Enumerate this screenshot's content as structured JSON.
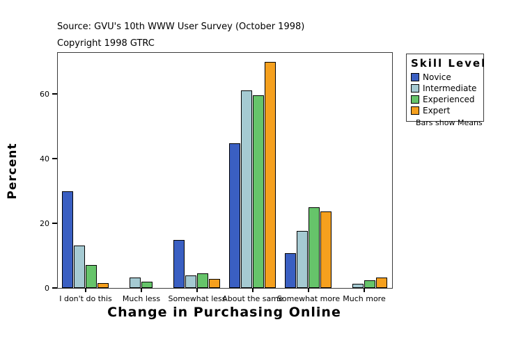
{
  "header": {
    "source_line": "Source: GVU's 10th WWW User Survey (October 1998)",
    "copyright_line": "Copyright 1998 GTRC"
  },
  "legend": {
    "title": "Skill Level",
    "footnote": "Bars show Means"
  },
  "chart_data": {
    "type": "bar",
    "title": "",
    "xlabel": "Change in Purchasing Online",
    "ylabel": "Percent",
    "categories": [
      "I don't do this",
      "Much less",
      "Somewhat less",
      "About the same",
      "Somewhat more",
      "Much more"
    ],
    "series": [
      {
        "name": "Novice",
        "color": "#3A5FC2",
        "values": [
          29.8,
          0,
          14.9,
          44.7,
          10.8,
          0
        ]
      },
      {
        "name": "Intermediate",
        "color": "#A5CAD2",
        "values": [
          13.1,
          3.3,
          3.9,
          61.0,
          17.6,
          1.2
        ]
      },
      {
        "name": "Experienced",
        "color": "#66C46A",
        "values": [
          7.0,
          1.9,
          4.6,
          59.5,
          24.9,
          2.4
        ]
      },
      {
        "name": "Expert",
        "color": "#F5A01E",
        "values": [
          1.4,
          0,
          2.7,
          69.8,
          23.6,
          3.3
        ]
      }
    ],
    "yticks": [
      0,
      20,
      40,
      60
    ],
    "ylim": [
      0,
      72.7
    ],
    "grid": false,
    "legend_position": "right",
    "zero_values_not_drawn": true
  }
}
